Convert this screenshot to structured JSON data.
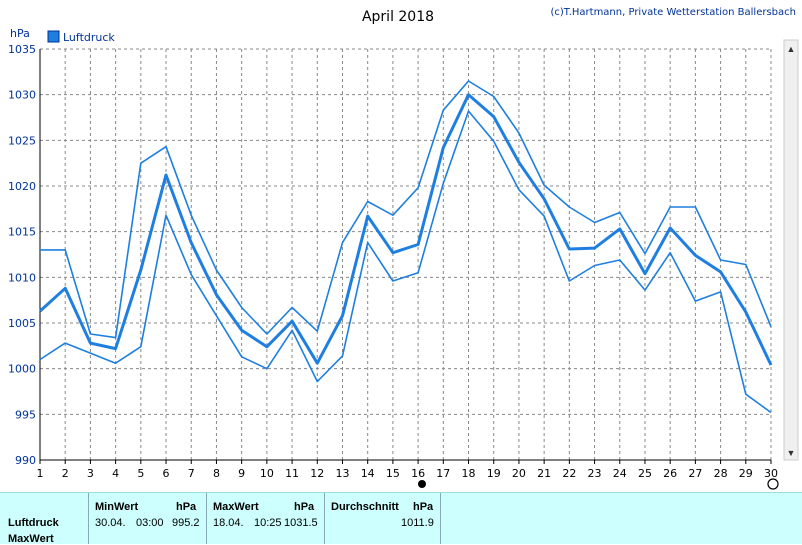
{
  "header": {
    "title": "April 2018",
    "credit": "(c)T.Hartmann, Private Wetterstation Ballersbach",
    "unit": "hPa"
  },
  "colors": {
    "line": "#1e7fe0",
    "grid": "#888888",
    "axis": "#000000",
    "stats_bg": "#ccfffd"
  },
  "chart_data": {
    "type": "line",
    "title": "April 2018",
    "ylabel": "hPa",
    "ylim": [
      990,
      1035
    ],
    "yticks": [
      990,
      995,
      1000,
      1005,
      1010,
      1015,
      1020,
      1025,
      1030,
      1035
    ],
    "x": [
      1,
      2,
      3,
      4,
      5,
      6,
      7,
      8,
      9,
      10,
      11,
      12,
      13,
      14,
      15,
      16,
      17,
      18,
      19,
      20,
      21,
      22,
      23,
      24,
      25,
      26,
      27,
      28,
      29,
      30
    ],
    "grid": true,
    "legend": {
      "position": "top-left",
      "entries": [
        "Luftdruck"
      ]
    },
    "series": [
      {
        "name": "Luftdruck",
        "role": "mean",
        "values": [
          1006.3,
          1008.8,
          1002.8,
          1002.2,
          1010.8,
          1021.2,
          1013.8,
          1008.1,
          1004.2,
          1002.4,
          1005.2,
          1000.6,
          1005.8,
          1016.7,
          1012.7,
          1013.6,
          1024.2,
          1030.0,
          1027.6,
          1022.6,
          1018.6,
          1013.1,
          1013.2,
          1015.3,
          1010.4,
          1015.4,
          1012.4,
          1010.6,
          1006.2,
          1000.4
        ]
      },
      {
        "role": "max",
        "values": [
          1013.0,
          1013.0,
          1003.8,
          1003.4,
          1022.5,
          1024.3,
          1016.8,
          1010.8,
          1006.7,
          1003.8,
          1006.7,
          1004.1,
          1013.8,
          1018.3,
          1016.8,
          1019.8,
          1028.3,
          1031.5,
          1029.8,
          1025.8,
          1020.1,
          1017.7,
          1016.0,
          1017.1,
          1012.6,
          1017.7,
          1017.7,
          1011.9,
          1011.4,
          1004.6
        ]
      },
      {
        "role": "min",
        "values": [
          1001.0,
          1002.8,
          1001.7,
          1000.6,
          1002.4,
          1016.8,
          1010.3,
          1005.8,
          1001.3,
          1000.0,
          1004.2,
          998.6,
          1001.4,
          1013.8,
          1009.6,
          1010.5,
          1020.3,
          1028.2,
          1024.9,
          1019.6,
          1016.7,
          1009.6,
          1011.3,
          1011.9,
          1008.6,
          1012.7,
          1007.4,
          1008.4,
          997.2,
          995.2
        ]
      }
    ]
  },
  "stats": {
    "row_label": "Luftdruck",
    "next_row_label": "MaxWert",
    "min": {
      "header": "MinWert",
      "unit": "hPa",
      "date": "30.04.",
      "time": "03:00",
      "value": "995.2"
    },
    "max": {
      "header": "MaxWert",
      "unit": "hPa",
      "date": "18.04.",
      "time": "10:25",
      "value": "1031.5"
    },
    "avg": {
      "header": "Durchschnitt",
      "unit": "hPa",
      "value": "1011.9"
    }
  }
}
